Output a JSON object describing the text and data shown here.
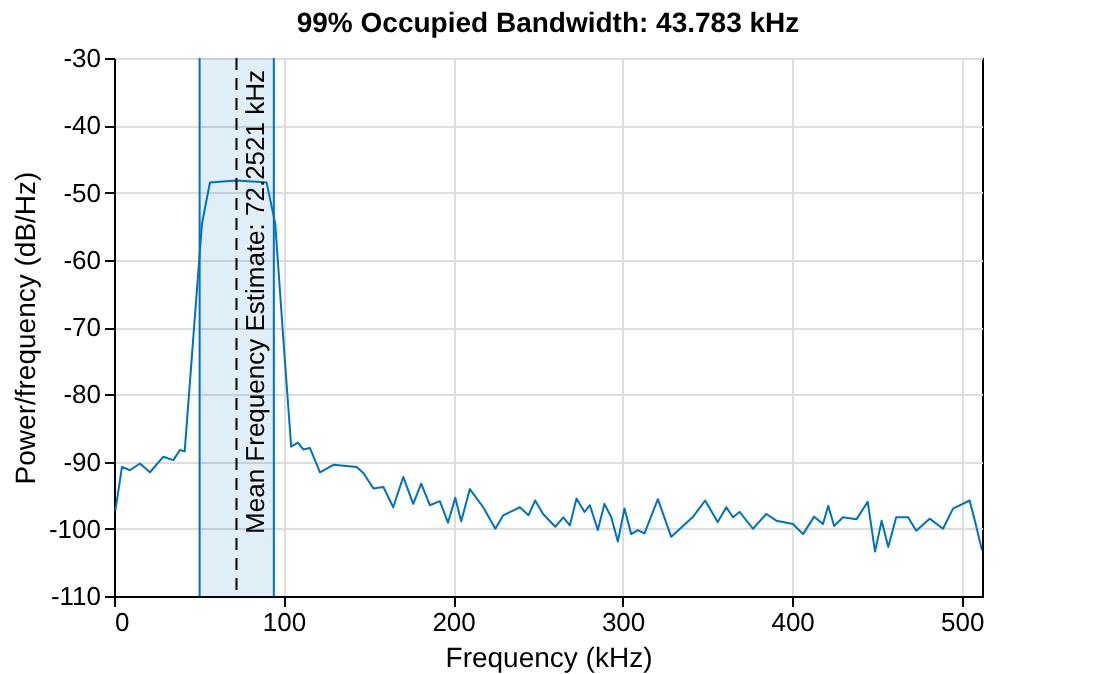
{
  "chart_data": {
    "type": "line",
    "title": "99% Occupied Bandwidth: 43.783 kHz",
    "xlabel": "Frequency (kHz)",
    "ylabel": "Power/frequency (dB/Hz)",
    "x": [
      0.8,
      4.7,
      9.4,
      15.3,
      21.2,
      29,
      35,
      38.9,
      41.7,
      46.8,
      51.9,
      56.6,
      72.3,
      90,
      95.1,
      99.8,
      104.5,
      108.5,
      111.6,
      115.6,
      121.5,
      129.4,
      143.1,
      147.1,
      153,
      158.9,
      164.7,
      170.6,
      176.5,
      181.2,
      186.3,
      192.2,
      197,
      201.3,
      204.8,
      209.9,
      217.8,
      224.9,
      229.6,
      239.4,
      244.5,
      248.4,
      253.1,
      260.3,
      265,
      268.9,
      272.8,
      277.5,
      280.7,
      285.4,
      289.3,
      293.3,
      297.2,
      301.1,
      305.1,
      309,
      312.9,
      320.8,
      328.7,
      341.6,
      348.7,
      356.1,
      361.2,
      365.1,
      369,
      376.9,
      384.8,
      390.7,
      400.5,
      406.4,
      413,
      418.2,
      421.3,
      424.8,
      430,
      437.9,
      444.6,
      448.9,
      452.8,
      456.7,
      461.4,
      468.4,
      473.2,
      481.1,
      489,
      494.9,
      504.7,
      507.8,
      512
    ],
    "series": [
      {
        "color": "#0072bd",
        "values": [
          -97.3,
          -90.8,
          -91.3,
          -90.3,
          -91.6,
          -89.3,
          -89.8,
          -88.3,
          -88.5,
          -71.5,
          -54.6,
          -48.5,
          -48.2,
          -48.5,
          -54.6,
          -71.5,
          -87.8,
          -87.2,
          -88.2,
          -88,
          -91.6,
          -90.5,
          -90.8,
          -91.7,
          -94,
          -93.8,
          -96.8,
          -92.3,
          -96.3,
          -93.3,
          -96.5,
          -95.9,
          -99.1,
          -95.4,
          -98.9,
          -94.1,
          -96.8,
          -100,
          -98,
          -96.8,
          -98,
          -95.8,
          -97.8,
          -99.7,
          -98.3,
          -99.5,
          -95.5,
          -97.5,
          -96.5,
          -100.2,
          -96.3,
          -98.3,
          -101.9,
          -97,
          -100.8,
          -100.2,
          -100.7,
          -95.6,
          -101.2,
          -98.2,
          -95.8,
          -99,
          -96.8,
          -98.3,
          -97.5,
          -100,
          -97.8,
          -98.8,
          -99.3,
          -100.8,
          -98.2,
          -99.3,
          -96.6,
          -99.6,
          -98.3,
          -98.6,
          -96,
          -103.4,
          -98.8,
          -102.7,
          -98.3,
          -98.3,
          -100.3,
          -98.5,
          -100,
          -97,
          -95.8,
          -98.8,
          -103.2
        ]
      }
    ],
    "bands": [
      {
        "axis": "x",
        "from": 50.5,
        "to": 94.283,
        "color": "#0072bd"
      }
    ],
    "ref_lines": [
      {
        "axis": "x",
        "value": 50.5,
        "color": "#0072bd",
        "line_style": "solid"
      },
      {
        "axis": "x",
        "value": 94.283,
        "color": "#0072bd",
        "line_style": "solid"
      },
      {
        "axis": "x",
        "value": 72.2521,
        "label": "Mean Frequency Estimate: 72.2521 kHz",
        "line_style": "dashed",
        "color": "#000000"
      }
    ],
    "xlim": [
      0,
      512
    ],
    "xticks": [
      0,
      100,
      200,
      300,
      400,
      500
    ],
    "ylim": [
      -110,
      -30
    ],
    "yticks": [
      -110,
      -100,
      -90,
      -80,
      -70,
      -60,
      -50,
      -40,
      -30
    ],
    "grid": true,
    "line_style": "solid"
  }
}
